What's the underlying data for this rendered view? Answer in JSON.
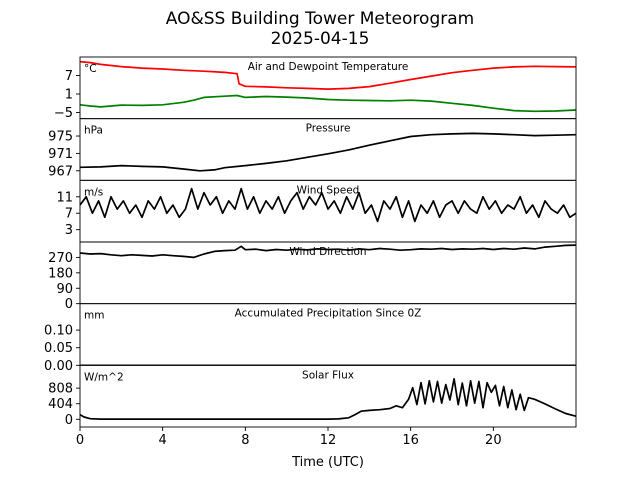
{
  "figure": {
    "title_line1": "AO&SS Building Tower Meteorogram",
    "title_line2": "2025-04-15",
    "xlabel": "Time (UTC)"
  },
  "chart_data": [
    {
      "type": "line",
      "title": "Air and Dewpoint Temperature",
      "unit": "°C",
      "xlim": [
        0,
        24
      ],
      "ylim": [
        -7,
        13
      ],
      "yticks": [
        -5,
        1,
        7
      ],
      "ytick_labels": [
        "−5",
        "1",
        "7"
      ],
      "series": [
        {
          "color": "#ff0000",
          "x": [
            0,
            0.5,
            1,
            2,
            3,
            4,
            5,
            6,
            7,
            7.6,
            7.7,
            8,
            9,
            10,
            11,
            12,
            13,
            14,
            15,
            16,
            17,
            18,
            19,
            20,
            21,
            22,
            23,
            24
          ],
          "y": [
            11.5,
            11.2,
            10.6,
            9.9,
            9.4,
            9.1,
            8.7,
            8.4,
            8.0,
            7.6,
            4.3,
            3.5,
            3.3,
            3.0,
            2.8,
            2.6,
            2.8,
            3.4,
            4.5,
            5.7,
            6.8,
            7.9,
            8.7,
            9.4,
            9.8,
            10.0,
            9.9,
            9.8
          ]
        },
        {
          "color": "#008000",
          "x": [
            0,
            0.5,
            1,
            2,
            3,
            4,
            5,
            5.5,
            6,
            7,
            7.6,
            8,
            9,
            10,
            11,
            12,
            13,
            14,
            15,
            16,
            17,
            18,
            19,
            20,
            21,
            22,
            23,
            24
          ],
          "y": [
            -2.5,
            -2.9,
            -3.2,
            -2.6,
            -2.7,
            -2.5,
            -1.7,
            -1.0,
            -0.1,
            0.3,
            0.5,
            -0.1,
            0.2,
            0.0,
            -0.3,
            -0.8,
            -1.0,
            -1.1,
            -1.2,
            -1.0,
            -1.3,
            -2.0,
            -2.7,
            -3.6,
            -4.4,
            -4.6,
            -4.5,
            -4.2
          ]
        }
      ]
    },
    {
      "type": "line",
      "title": "Pressure",
      "unit": "hPa",
      "xlim": [
        0,
        24
      ],
      "ylim": [
        964.8,
        979.0
      ],
      "yticks": [
        967,
        971,
        975
      ],
      "ytick_labels": [
        "967",
        "971",
        "975"
      ],
      "series": [
        {
          "color": "#000000",
          "x": [
            0,
            1,
            2,
            3,
            4,
            5,
            5.8,
            6.5,
            7,
            8,
            9,
            10,
            11,
            12,
            13,
            14,
            15,
            16,
            17,
            18,
            19,
            20,
            21,
            22,
            23,
            24
          ],
          "y": [
            967.8,
            967.9,
            968.2,
            968.0,
            967.9,
            967.4,
            967.0,
            967.2,
            967.7,
            968.2,
            968.7,
            969.3,
            970.1,
            970.9,
            971.8,
            972.9,
            973.9,
            974.9,
            975.3,
            975.5,
            975.6,
            975.5,
            975.3,
            975.1,
            975.2,
            975.3
          ]
        }
      ]
    },
    {
      "type": "line",
      "title": "Wind Speed",
      "unit": "m/s",
      "xlim": [
        0,
        24
      ],
      "ylim": [
        0.0,
        15.0
      ],
      "yticks": [
        3,
        7,
        11
      ],
      "ytick_labels": [
        "3",
        "7",
        "11"
      ],
      "series": [
        {
          "color": "#000000",
          "x": [
            0,
            0.3,
            0.6,
            0.9,
            1.2,
            1.5,
            1.8,
            2.1,
            2.4,
            2.7,
            3.0,
            3.3,
            3.6,
            3.9,
            4.2,
            4.5,
            4.8,
            5.1,
            5.4,
            5.7,
            6.0,
            6.3,
            6.6,
            6.9,
            7.2,
            7.5,
            7.8,
            8.1,
            8.4,
            8.7,
            9.0,
            9.3,
            9.6,
            9.9,
            10.2,
            10.5,
            10.8,
            11.1,
            11.4,
            11.7,
            12.0,
            12.3,
            12.6,
            12.9,
            13.2,
            13.5,
            13.8,
            14.1,
            14.4,
            14.7,
            15.0,
            15.3,
            15.6,
            15.9,
            16.2,
            16.5,
            16.8,
            17.1,
            17.4,
            17.7,
            18.0,
            18.3,
            18.6,
            18.9,
            19.2,
            19.5,
            19.8,
            20.1,
            20.4,
            20.7,
            21.0,
            21.3,
            21.6,
            21.9,
            22.2,
            22.5,
            22.8,
            23.1,
            23.4,
            23.7,
            24.0
          ],
          "y": [
            9,
            11,
            7,
            10,
            6,
            11,
            8,
            10,
            7,
            9,
            6,
            10,
            8,
            11,
            7,
            9,
            6,
            8,
            13,
            8,
            12,
            9,
            11,
            7,
            10,
            8,
            13,
            8,
            11,
            7,
            10,
            8,
            11,
            7,
            10,
            12,
            8,
            11,
            9,
            12,
            8,
            10,
            7,
            11,
            8,
            12,
            7,
            9,
            5,
            10,
            8,
            11,
            6,
            10,
            5,
            9,
            7,
            10,
            6,
            9,
            10,
            7,
            10,
            8,
            7,
            11,
            8,
            10,
            7,
            9,
            8,
            11,
            7,
            9,
            6,
            10,
            8,
            7,
            9,
            6,
            7
          ]
        }
      ]
    },
    {
      "type": "line",
      "title": "Wind Direction",
      "unit": "",
      "xlim": [
        0,
        24
      ],
      "ylim": [
        0,
        360
      ],
      "yticks": [
        0,
        90,
        180,
        270
      ],
      "ytick_labels": [
        "0",
        "90",
        "180",
        "270"
      ],
      "series": [
        {
          "color": "#000000",
          "x": [
            0,
            0.5,
            1,
            1.5,
            2,
            2.5,
            3,
            3.5,
            4,
            4.5,
            5,
            5.5,
            6,
            6.5,
            7,
            7.5,
            7.8,
            8,
            8.5,
            9,
            9.5,
            10,
            10.5,
            11,
            11.5,
            12,
            12.5,
            13,
            13.5,
            14,
            14.5,
            15,
            15.5,
            16,
            16.5,
            17,
            17.5,
            18,
            18.5,
            19,
            19.5,
            20,
            20.5,
            21,
            21.5,
            22,
            22.5,
            23,
            23.5,
            24
          ],
          "y": [
            296,
            290,
            292,
            285,
            280,
            285,
            282,
            278,
            285,
            280,
            276,
            270,
            290,
            305,
            310,
            312,
            335,
            315,
            318,
            310,
            316,
            312,
            318,
            314,
            320,
            316,
            318,
            312,
            320,
            315,
            322,
            318,
            312,
            315,
            320,
            318,
            322,
            316,
            320,
            318,
            322,
            316,
            322,
            318,
            325,
            320,
            330,
            335,
            340,
            342
          ]
        }
      ]
    },
    {
      "type": "line",
      "title": "Accumulated Precipitation Since 0Z",
      "unit": "mm",
      "xlim": [
        0,
        24
      ],
      "ylim": [
        0,
        0.175
      ],
      "yticks": [
        0.0,
        0.05,
        0.1
      ],
      "ytick_labels": [
        "0.00",
        "0.05",
        "0.10"
      ],
      "series": [
        {
          "color": "#000000",
          "x": [
            0,
            24
          ],
          "y": [
            0.0,
            0.0
          ]
        }
      ]
    },
    {
      "type": "line",
      "title": "Solar Flux",
      "unit": "W/m^2",
      "xlim": [
        0,
        24
      ],
      "ylim": [
        -200,
        1400
      ],
      "yticks": [
        0,
        404,
        808
      ],
      "ytick_labels": [
        "0",
        "404",
        "808"
      ],
      "series": [
        {
          "color": "#000000",
          "x": [
            0,
            0.2,
            0.5,
            1,
            2,
            4,
            6,
            8,
            10,
            12,
            12.5,
            13,
            13.3,
            13.6,
            14,
            14.5,
            15,
            15.3,
            15.6,
            15.9,
            16.1,
            16.3,
            16.5,
            16.7,
            16.9,
            17.1,
            17.3,
            17.5,
            17.7,
            17.9,
            18.1,
            18.3,
            18.5,
            18.7,
            18.9,
            19.1,
            19.3,
            19.5,
            19.7,
            19.9,
            20.1,
            20.3,
            20.5,
            20.7,
            20.9,
            21.1,
            21.3,
            21.5,
            21.7,
            22.0,
            22.5,
            23.0,
            23.5,
            24.0
          ],
          "y": [
            120,
            60,
            15,
            5,
            5,
            5,
            5,
            5,
            5,
            5,
            10,
            40,
            120,
            210,
            230,
            250,
            280,
            350,
            300,
            520,
            820,
            380,
            950,
            400,
            1000,
            450,
            980,
            420,
            900,
            500,
            1050,
            380,
            940,
            350,
            1000,
            420,
            980,
            300,
            950,
            700,
            880,
            350,
            850,
            300,
            760,
            250,
            650,
            230,
            560,
            520,
            400,
            270,
            150,
            80
          ]
        }
      ]
    }
  ]
}
